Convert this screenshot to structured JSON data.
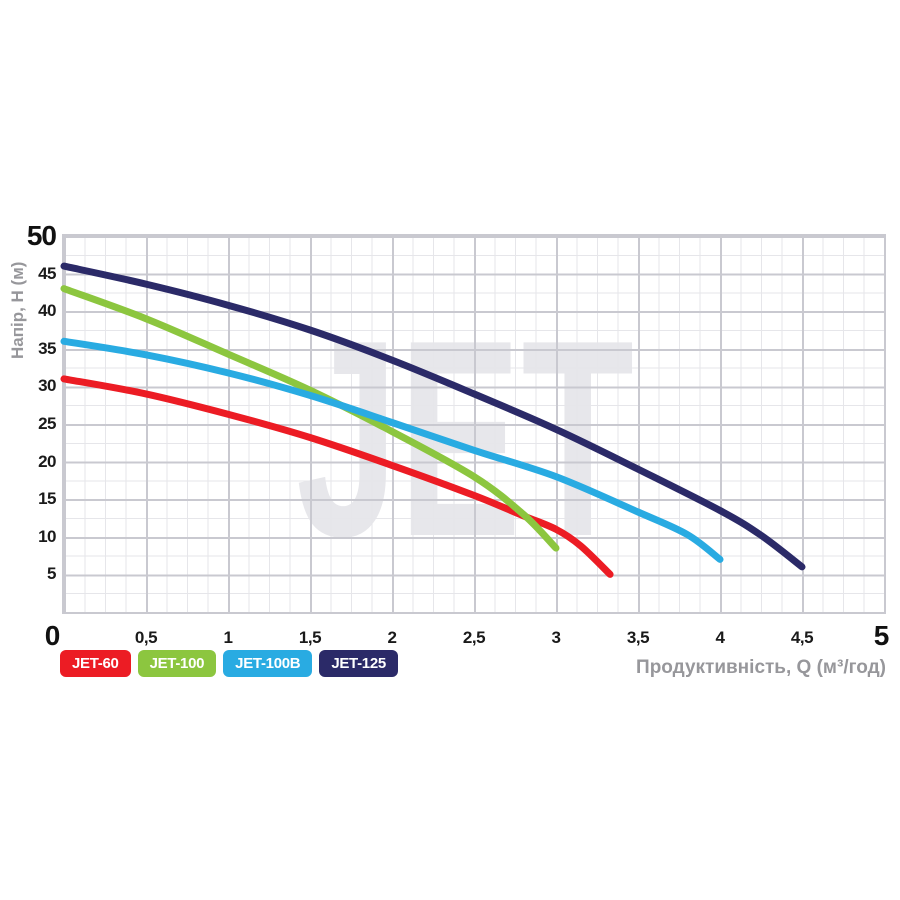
{
  "watermark": "JET",
  "chart_data": {
    "type": "line",
    "title": "",
    "xlabel": "Продуктивність, Q (м³/год)",
    "ylabel": "Напір, Н (м)",
    "xlim": [
      0,
      5
    ],
    "ylim": [
      0,
      50
    ],
    "grid": {
      "on": true,
      "x_minor_step": 0.125,
      "x_major_step": 0.5,
      "y_minor_step": 2.5,
      "y_major_step": 5
    },
    "legend_position": "bottom-left",
    "x_ticks": [
      {
        "v": 0,
        "label": "0",
        "bold": true
      },
      {
        "v": 0.5,
        "label": "0,5",
        "bold": false
      },
      {
        "v": 1,
        "label": "1",
        "bold": false
      },
      {
        "v": 1.5,
        "label": "1,5",
        "bold": false
      },
      {
        "v": 2,
        "label": "2",
        "bold": false
      },
      {
        "v": 2.5,
        "label": "2,5",
        "bold": false
      },
      {
        "v": 3,
        "label": "3",
        "bold": false
      },
      {
        "v": 3.5,
        "label": "3,5",
        "bold": false
      },
      {
        "v": 4,
        "label": "4",
        "bold": false
      },
      {
        "v": 4.5,
        "label": "4,5",
        "bold": false
      },
      {
        "v": 5,
        "label": "5",
        "bold": true
      }
    ],
    "y_ticks": [
      {
        "v": 50,
        "label": "50",
        "bold": true
      },
      {
        "v": 45,
        "label": "45",
        "bold": false
      },
      {
        "v": 40,
        "label": "40",
        "bold": false
      },
      {
        "v": 35,
        "label": "35",
        "bold": false
      },
      {
        "v": 30,
        "label": "30",
        "bold": false
      },
      {
        "v": 25,
        "label": "25",
        "bold": false
      },
      {
        "v": 20,
        "label": "20",
        "bold": false
      },
      {
        "v": 15,
        "label": "15",
        "bold": false
      },
      {
        "v": 10,
        "label": "10",
        "bold": false
      },
      {
        "v": 5,
        "label": "5",
        "bold": false
      }
    ],
    "series": [
      {
        "name": "JET-60",
        "color": "#ec1c24",
        "points": [
          [
            0,
            31
          ],
          [
            0.5,
            29
          ],
          [
            1,
            26.3
          ],
          [
            1.5,
            23.2
          ],
          [
            2,
            19.5
          ],
          [
            2.5,
            15.5
          ],
          [
            2.8,
            12.8
          ],
          [
            3,
            11
          ],
          [
            3.15,
            8.8
          ],
          [
            3.33,
            5
          ]
        ]
      },
      {
        "name": "JET-100",
        "color": "#8cc63f",
        "points": [
          [
            0,
            43
          ],
          [
            0.5,
            39
          ],
          [
            1,
            34.3
          ],
          [
            1.5,
            29.5
          ],
          [
            2,
            24
          ],
          [
            2.5,
            18
          ],
          [
            2.8,
            13
          ],
          [
            3,
            8.5
          ]
        ]
      },
      {
        "name": "JET-100B",
        "color": "#29abe2",
        "points": [
          [
            0,
            36
          ],
          [
            0.5,
            34.2
          ],
          [
            1,
            31.8
          ],
          [
            1.5,
            28.8
          ],
          [
            2,
            25.2
          ],
          [
            2.5,
            21.5
          ],
          [
            3,
            18
          ],
          [
            3.5,
            13.3
          ],
          [
            3.8,
            10.3
          ],
          [
            4,
            7
          ]
        ]
      },
      {
        "name": "JET-125",
        "color": "#2b2a68",
        "points": [
          [
            0,
            46
          ],
          [
            0.5,
            43.6
          ],
          [
            1,
            40.8
          ],
          [
            1.5,
            37.5
          ],
          [
            2,
            33.5
          ],
          [
            2.5,
            29
          ],
          [
            3,
            24.3
          ],
          [
            3.5,
            19
          ],
          [
            4,
            13.5
          ],
          [
            4.25,
            10.2
          ],
          [
            4.5,
            6
          ]
        ]
      }
    ]
  },
  "legend": [
    {
      "label": "JET-60",
      "color": "#ec1c24"
    },
    {
      "label": "JET-100",
      "color": "#8cc63f"
    },
    {
      "label": "JET-100B",
      "color": "#29abe2"
    },
    {
      "label": "JET-125",
      "color": "#2b2a68"
    }
  ]
}
